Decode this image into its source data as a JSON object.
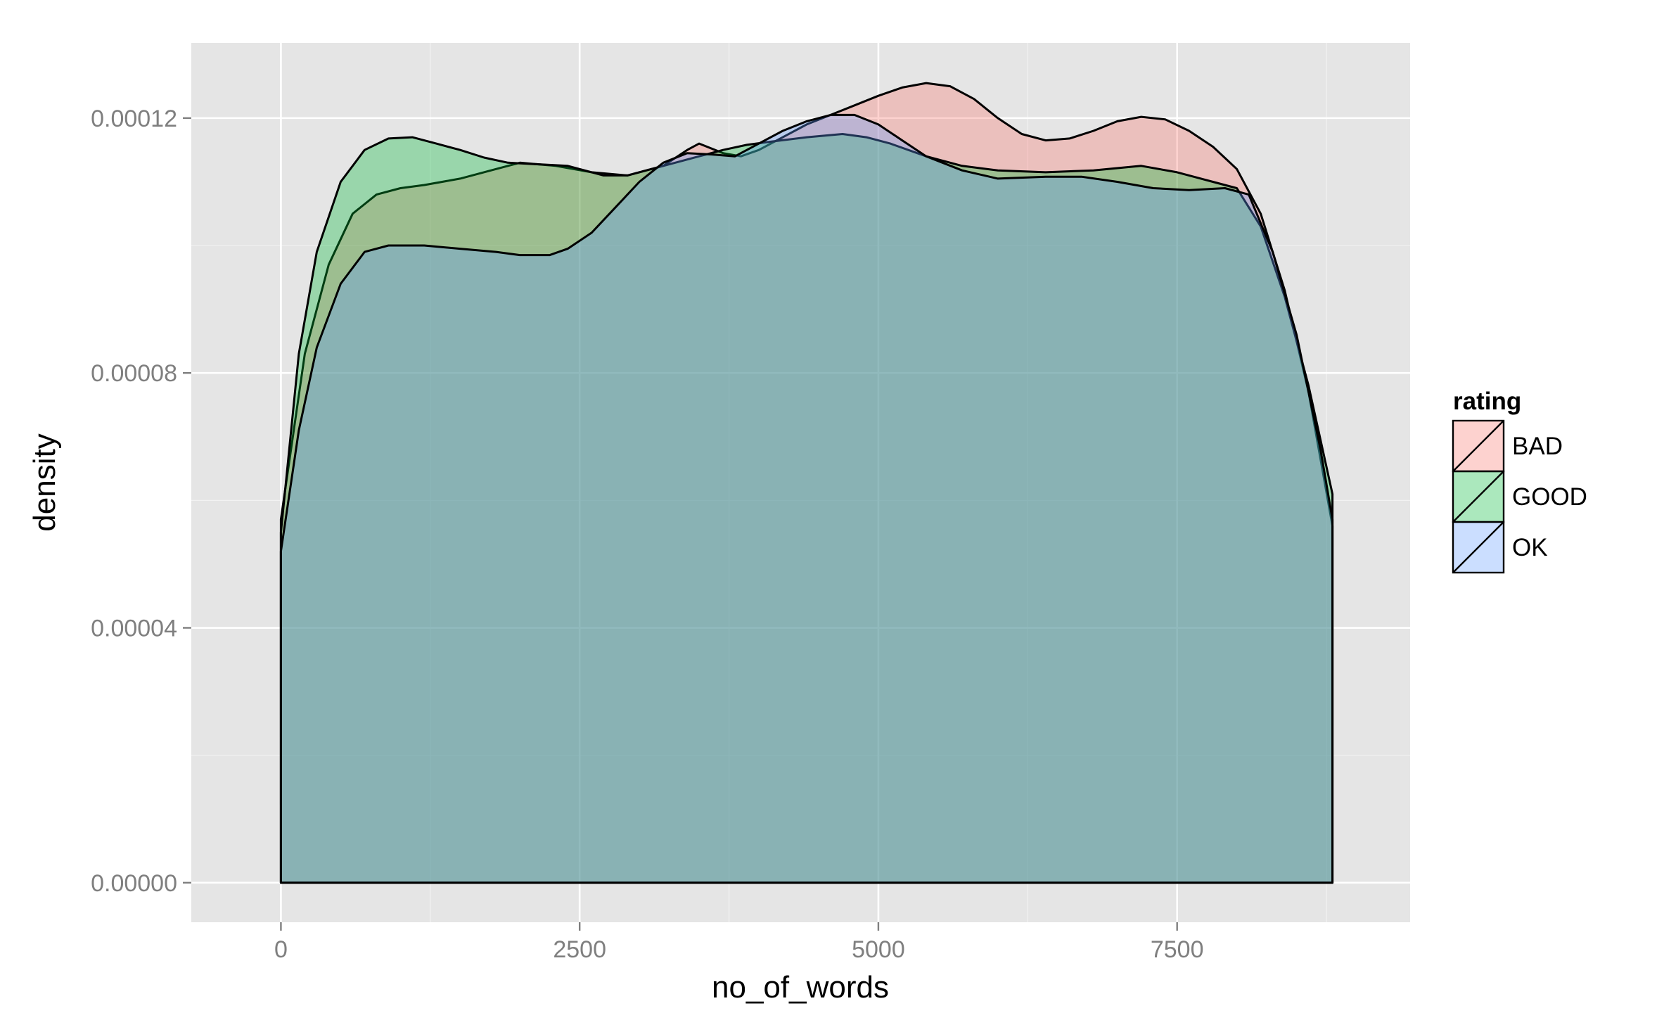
{
  "chart_data": {
    "type": "area",
    "subtype": "density",
    "title": "",
    "xlabel": "no_of_words",
    "ylabel": "density",
    "xlim": [
      -750,
      9450
    ],
    "ylim": [
      -6.2e-06,
      0.0001318
    ],
    "x_ticks": [
      0,
      2500,
      5000,
      7500
    ],
    "x_tick_labels": [
      "0",
      "2500",
      "5000",
      "7500"
    ],
    "y_ticks": [
      0,
      4e-05,
      8e-05,
      0.00012
    ],
    "y_tick_labels": [
      "0.00000",
      "0.00004",
      "0.00008",
      "0.00012"
    ],
    "grid": true,
    "legend": {
      "title": "rating",
      "position": "right"
    },
    "series": [
      {
        "name": "BAD",
        "color": "#F8766D",
        "points": [
          [
            0,
            5.7e-05
          ],
          [
            200,
            8.3e-05
          ],
          [
            400,
            9.7e-05
          ],
          [
            600,
            0.000105
          ],
          [
            800,
            0.000108
          ],
          [
            1000,
            0.000109
          ],
          [
            1200,
            0.0001095
          ],
          [
            1500,
            0.0001105
          ],
          [
            1800,
            0.000112
          ],
          [
            2000,
            0.000113
          ],
          [
            2300,
            0.0001125
          ],
          [
            2600,
            0.0001115
          ],
          [
            2900,
            0.000111
          ],
          [
            3200,
            0.0001125
          ],
          [
            3400,
            0.000115
          ],
          [
            3500,
            0.000116
          ],
          [
            3700,
            0.0001145
          ],
          [
            3850,
            0.000114
          ],
          [
            4000,
            0.000115
          ],
          [
            4200,
            0.000117
          ],
          [
            4400,
            0.000119
          ],
          [
            4600,
            0.0001205
          ],
          [
            4800,
            0.000122
          ],
          [
            5000,
            0.0001235
          ],
          [
            5200,
            0.0001248
          ],
          [
            5400,
            0.0001255
          ],
          [
            5600,
            0.000125
          ],
          [
            5800,
            0.000123
          ],
          [
            6000,
            0.00012
          ],
          [
            6200,
            0.0001175
          ],
          [
            6400,
            0.0001165
          ],
          [
            6600,
            0.0001168
          ],
          [
            6800,
            0.000118
          ],
          [
            7000,
            0.0001195
          ],
          [
            7200,
            0.0001202
          ],
          [
            7400,
            0.0001198
          ],
          [
            7600,
            0.000118
          ],
          [
            7800,
            0.0001155
          ],
          [
            8000,
            0.000112
          ],
          [
            8200,
            0.000105
          ],
          [
            8400,
            9.3e-05
          ],
          [
            8600,
            7.7e-05
          ],
          [
            8800,
            5.6e-05
          ]
        ]
      },
      {
        "name": "GOOD",
        "color": "#00BA38",
        "points": [
          [
            0,
            5.5e-05
          ],
          [
            150,
            8.3e-05
          ],
          [
            300,
            9.9e-05
          ],
          [
            500,
            0.00011
          ],
          [
            700,
            0.000115
          ],
          [
            900,
            0.0001168
          ],
          [
            1100,
            0.000117
          ],
          [
            1300,
            0.000116
          ],
          [
            1500,
            0.000115
          ],
          [
            1700,
            0.0001138
          ],
          [
            1900,
            0.000113
          ],
          [
            2100,
            0.0001128
          ],
          [
            2400,
            0.0001125
          ],
          [
            2700,
            0.000111
          ],
          [
            2900,
            0.000111
          ],
          [
            3100,
            0.000112
          ],
          [
            3300,
            0.000113
          ],
          [
            3500,
            0.000114
          ],
          [
            3700,
            0.000115
          ],
          [
            3900,
            0.0001158
          ],
          [
            4100,
            0.0001163
          ],
          [
            4400,
            0.000117
          ],
          [
            4700,
            0.0001175
          ],
          [
            4900,
            0.000117
          ],
          [
            5100,
            0.000116
          ],
          [
            5400,
            0.000114
          ],
          [
            5700,
            0.0001125
          ],
          [
            6000,
            0.0001118
          ],
          [
            6400,
            0.0001115
          ],
          [
            6800,
            0.0001118
          ],
          [
            7200,
            0.0001125
          ],
          [
            7500,
            0.0001115
          ],
          [
            7800,
            0.00011
          ],
          [
            8000,
            0.000109
          ],
          [
            8200,
            0.000103
          ],
          [
            8400,
            9.2e-05
          ],
          [
            8600,
            7.8e-05
          ],
          [
            8800,
            6.1e-05
          ]
        ]
      },
      {
        "name": "OK",
        "color": "#619CFF",
        "points": [
          [
            0,
            5.2e-05
          ],
          [
            150,
            7.1e-05
          ],
          [
            300,
            8.4e-05
          ],
          [
            500,
            9.4e-05
          ],
          [
            700,
            9.9e-05
          ],
          [
            900,
            0.0001
          ],
          [
            1200,
            0.0001
          ],
          [
            1500,
            9.95e-05
          ],
          [
            1800,
            9.9e-05
          ],
          [
            2000,
            9.85e-05
          ],
          [
            2250,
            9.85e-05
          ],
          [
            2400,
            9.95e-05
          ],
          [
            2600,
            0.000102
          ],
          [
            2800,
            0.000106
          ],
          [
            3000,
            0.00011
          ],
          [
            3200,
            0.000113
          ],
          [
            3400,
            0.0001145
          ],
          [
            3600,
            0.0001143
          ],
          [
            3800,
            0.000114
          ],
          [
            4000,
            0.000116
          ],
          [
            4200,
            0.000118
          ],
          [
            4400,
            0.0001195
          ],
          [
            4600,
            0.0001205
          ],
          [
            4800,
            0.0001205
          ],
          [
            5000,
            0.000119
          ],
          [
            5200,
            0.0001165
          ],
          [
            5400,
            0.000114
          ],
          [
            5700,
            0.0001118
          ],
          [
            6000,
            0.0001105
          ],
          [
            6400,
            0.0001108
          ],
          [
            6700,
            0.0001108
          ],
          [
            7000,
            0.00011
          ],
          [
            7300,
            0.000109
          ],
          [
            7600,
            0.0001087
          ],
          [
            7900,
            0.000109
          ],
          [
            8100,
            0.000108
          ],
          [
            8300,
            9.9e-05
          ],
          [
            8500,
            8.6e-05
          ],
          [
            8700,
            6.8e-05
          ],
          [
            8800,
            5.7e-05
          ]
        ]
      }
    ]
  }
}
